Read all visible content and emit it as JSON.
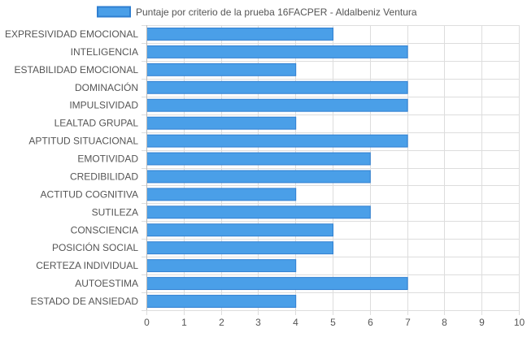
{
  "chart_data": {
    "type": "bar",
    "orientation": "horizontal",
    "categories": [
      "EXPRESIVIDAD EMOCIONAL",
      "INTELIGENCIA",
      "ESTABILIDAD EMOCIONAL",
      "DOMINACIÓN",
      "IMPULSIVIDAD",
      "LEALTAD GRUPAL",
      "APTITUD SITUACIONAL",
      "EMOTIVIDAD",
      "CREDIBILIDAD",
      "ACTITUD COGNITIVA",
      "SUTILEZA",
      "CONSCIENCIA",
      "POSICIÓN SOCIAL",
      "CERTEZA INDIVIDUAL",
      "AUTOESTIMA",
      "ESTADO DE ANSIEDAD"
    ],
    "series": [
      {
        "name": "Puntaje por criterio de la prueba 16FACPER - Aldalbeniz Ventura",
        "values": [
          5,
          7,
          4,
          7,
          7,
          4,
          7,
          6,
          6,
          4,
          6,
          5,
          5,
          4,
          7,
          4
        ]
      }
    ],
    "xlim": [
      0,
      10
    ],
    "x_ticks": [
      "0",
      "1",
      "2",
      "3",
      "4",
      "5",
      "6",
      "7",
      "8",
      "9",
      "10"
    ],
    "grid": true,
    "legend_position": "top",
    "colors": {
      "bar_fill": "#4a9fe8",
      "bar_stroke": "#2f7fd1",
      "grid": "#dddddd",
      "text": "#555555"
    }
  }
}
